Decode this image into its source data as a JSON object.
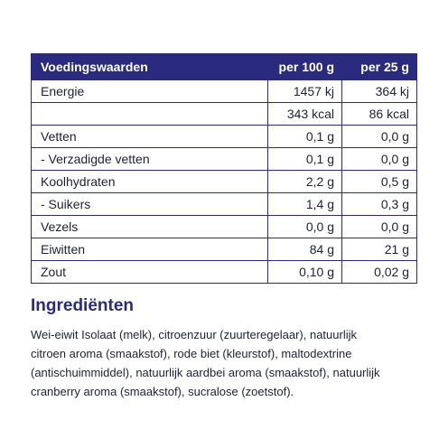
{
  "nutrition": {
    "headers": [
      "Voedingswaarden",
      "per 100 g",
      "per 25 g"
    ],
    "rows": [
      [
        "Energie",
        "1457 kj",
        "364 kj"
      ],
      [
        "",
        "343 kcal",
        "86 kcal"
      ],
      [
        "Vetten",
        "0,1 g",
        "0,0 g"
      ],
      [
        "- Verzadigde vetten",
        "0,1 g",
        "0,0 g"
      ],
      [
        "Koolhydraten",
        "2,2 g",
        "0,5 g"
      ],
      [
        "- Suikers",
        "1,4 g",
        "0,3 g"
      ],
      [
        "Vezels",
        "0,0 g",
        "0,0 g"
      ],
      [
        "Eiwitten",
        "84 g",
        "21 g"
      ],
      [
        "Zout",
        "0,10 g",
        "0,02 g"
      ]
    ]
  },
  "ingredients": {
    "title": "Ingrediënten",
    "lines": [
      "Wei-eiwit Isolaat (melk), citroenzuur (zuurteregelaar), natuurlijk",
      "citroen aroma (smaakstof), rode biet (kleurstof), maltodextrine",
      "(antischuimmiddel), natuurlijk aardbei aroma (smaakstof), natuurlijk",
      "cranberry aroma (smaakstof), sucralose (zoetstof)."
    ]
  },
  "colors": {
    "header_bg": "#2a2a7f",
    "border": "#2a2a7f",
    "title": "#2a2a7f",
    "text": "#1f1f3a"
  }
}
